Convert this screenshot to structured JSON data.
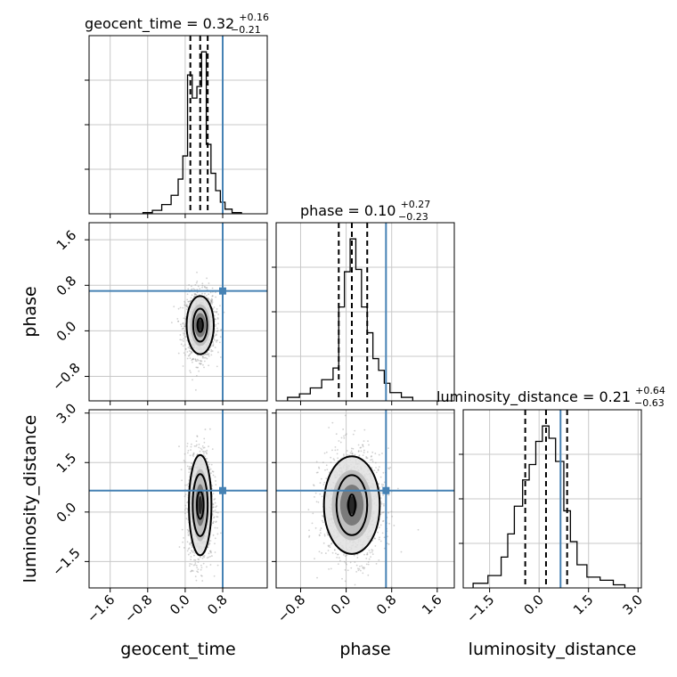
{
  "chart_data": {
    "type": "corner",
    "parameters": [
      "geocent_time",
      "phase",
      "luminosity_distance"
    ],
    "axis_labels": {
      "geocent_time": "geocent_time",
      "phase": "phase",
      "luminosity_distance": "luminosity_distance"
    },
    "titles": [
      {
        "name": "geocent_time = 0.32",
        "plus": "+0.16",
        "minus": "−0.21"
      },
      {
        "name": "phase = 0.10",
        "plus": "+0.27",
        "minus": "−0.23"
      },
      {
        "name": "luminosity_distance = 0.21",
        "plus": "+0.64",
        "minus": "−0.63"
      }
    ],
    "ranges": {
      "geocent_time": [
        -2.05,
        1.75
      ],
      "phase": [
        -1.23,
        1.9
      ],
      "luminosity_distance": [
        -2.3,
        3.1
      ]
    },
    "ticks": {
      "geocent_time": {
        "values": [
          -1.6,
          -0.8,
          0.0,
          0.8
        ],
        "labels": [
          "−1.6",
          "−0.8",
          "0.0",
          "0.8"
        ]
      },
      "phase": {
        "values": [
          -0.8,
          0.0,
          0.8,
          1.6
        ],
        "labels": [
          "−0.8",
          "0.0",
          "0.8",
          "1.6"
        ]
      },
      "luminosity_distance": {
        "values": [
          -1.5,
          0.0,
          1.5,
          3.0
        ],
        "labels": [
          "−1.5",
          "0.0",
          "1.5",
          "3.0"
        ]
      }
    },
    "truths": {
      "geocent_time": 0.8,
      "phase": 0.7,
      "luminosity_distance": 0.65
    },
    "quantiles": {
      "geocent_time": [
        0.11,
        0.32,
        0.48
      ],
      "phase": [
        -0.13,
        0.1,
        0.37
      ],
      "luminosity_distance": [
        -0.42,
        0.21,
        0.85
      ]
    },
    "histograms": {
      "geocent_time": {
        "edges": [
          -0.9,
          -0.7,
          -0.5,
          -0.3,
          -0.15,
          -0.05,
          0.05,
          0.15,
          0.25,
          0.35,
          0.45,
          0.55,
          0.65,
          0.75,
          0.85,
          1.0,
          1.2
        ],
        "counts": [
          1,
          3,
          8,
          16,
          30,
          50,
          120,
          100,
          110,
          140,
          60,
          35,
          20,
          10,
          4,
          1
        ]
      },
      "phase": {
        "edges": [
          -1.03,
          -0.82,
          -0.63,
          -0.43,
          -0.23,
          -0.13,
          -0.03,
          0.07,
          0.17,
          0.27,
          0.37,
          0.47,
          0.57,
          0.67,
          0.77,
          0.97,
          1.17
        ],
        "counts": [
          3,
          6,
          11,
          18,
          28,
          80,
          110,
          138,
          112,
          80,
          58,
          36,
          26,
          15,
          7,
          3
        ]
      },
      "luminosity_distance": {
        "edges": [
          -2.0,
          -1.55,
          -1.15,
          -0.95,
          -0.75,
          -0.5,
          -0.3,
          -0.1,
          0.1,
          0.3,
          0.5,
          0.75,
          0.95,
          1.15,
          1.45,
          1.85,
          2.25,
          2.6
        ],
        "counts": [
          3,
          8,
          20,
          35,
          53,
          70,
          80,
          95,
          105,
          97,
          82,
          50,
          30,
          15,
          7,
          5,
          2
        ]
      }
    },
    "contours": {
      "phase_vs_geocent_time": {
        "center": [
          0.32,
          0.1
        ],
        "levels": [
          {
            "rx": 0.06,
            "ry": 0.12
          },
          {
            "rx": 0.15,
            "ry": 0.29
          },
          {
            "rx": 0.29,
            "ry": 0.51
          }
        ]
      },
      "luminosity_distance_vs_geocent_time": {
        "center": [
          0.32,
          0.21
        ],
        "levels": [
          {
            "rx": 0.07,
            "ry": 0.42
          },
          {
            "rx": 0.16,
            "ry": 0.94
          },
          {
            "rx": 0.24,
            "ry": 1.52
          }
        ]
      },
      "luminosity_distance_vs_phase": {
        "center": [
          0.1,
          0.21
        ],
        "levels": [
          {
            "rx": 0.06,
            "ry": 0.32
          },
          {
            "rx": 0.27,
            "ry": 0.91
          },
          {
            "rx": 0.49,
            "ry": 1.48
          }
        ]
      }
    }
  },
  "colors": {
    "truth": "#4682b4",
    "hist": "#000000",
    "grid": "#c8c8c8"
  }
}
